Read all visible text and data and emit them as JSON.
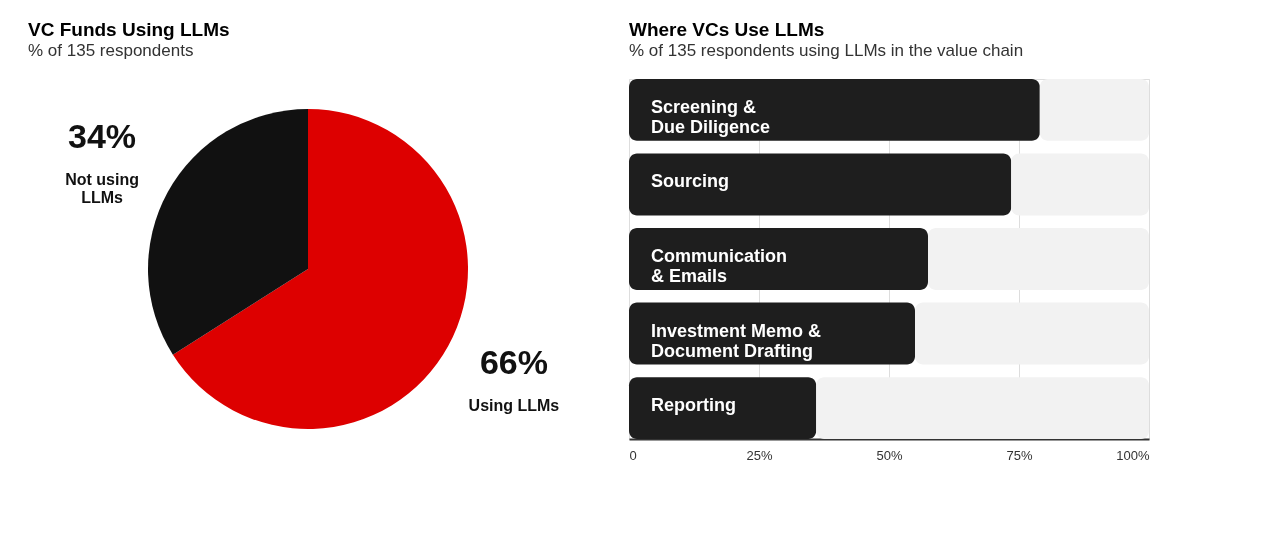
{
  "chart_data": [
    {
      "type": "pie",
      "title": "VC Funds Using LLMs",
      "subtitle": "% of 135 respondents",
      "categories": [
        "Using LLMs",
        "Not using\nLLMs"
      ],
      "values": [
        66,
        34
      ],
      "colors": [
        "#dd0000",
        "#111111"
      ],
      "value_labels": [
        "66%",
        "34%"
      ],
      "legend": false
    },
    {
      "type": "bar",
      "orientation": "horizontal",
      "stacked": true,
      "title": "Where VCs Use LLMs",
      "subtitle": "% of 135 respondents using LLMs in the value chain",
      "categories": [
        "Screening &\nDue Diligence",
        "Sourcing",
        "Communication\n& Emails",
        "Investment Memo &\nDocument Drafting",
        "Reporting"
      ],
      "series": [
        {
          "color": "#1e1e1e",
          "values": [
            79,
            73.5,
            57.5,
            55,
            36
          ]
        },
        {
          "color": "#f2f2f2",
          "values": [
            21,
            26.5,
            42.5,
            45,
            64
          ]
        }
      ],
      "xlim": [
        0,
        100
      ],
      "xticks": [
        0,
        {
          "value": 25,
          "label": "25%"
        },
        {
          "value": 50,
          "label": "50%"
        },
        {
          "value": 75,
          "label": "75%"
        },
        {
          "value": 100,
          "label": "100%"
        }
      ],
      "grid": "x",
      "tick_labels": "x",
      "legend": false
    }
  ]
}
